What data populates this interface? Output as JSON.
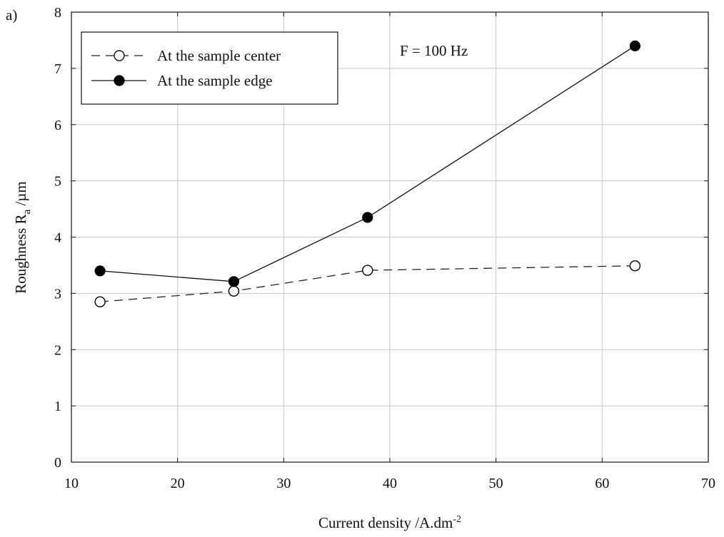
{
  "panel_label": "a)",
  "chart_data": {
    "type": "line",
    "xlabel": "Current density /A.dm",
    "xlabel_sup": "-2",
    "ylabel": "Roughness R",
    "ylabel_sub": "a",
    "ylabel_unit": " /µm",
    "xlim": [
      10,
      70
    ],
    "ylim": [
      0,
      8
    ],
    "xticks": [
      10,
      20,
      30,
      40,
      50,
      60,
      70
    ],
    "yticks": [
      0,
      1,
      2,
      3,
      4,
      5,
      6,
      7,
      8
    ],
    "grid": true,
    "legend_position": "top-left",
    "annotation": "F = 100 Hz",
    "series": [
      {
        "name": "At the sample center",
        "marker": "open-circle",
        "line_style": "dashed",
        "color": "#222222",
        "x": [
          12.7,
          25.3,
          37.9,
          63.1
        ],
        "y": [
          2.85,
          3.04,
          3.41,
          3.49
        ]
      },
      {
        "name": "At the sample edge",
        "marker": "filled-circle",
        "line_style": "solid",
        "color": "#111111",
        "x": [
          12.7,
          25.3,
          37.9,
          63.1
        ],
        "y": [
          3.4,
          3.21,
          4.35,
          7.4
        ]
      }
    ]
  }
}
